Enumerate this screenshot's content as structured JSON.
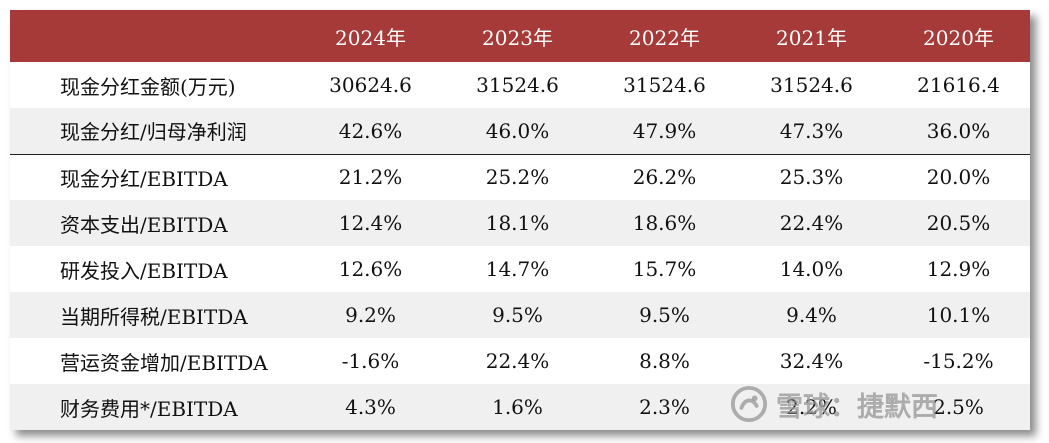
{
  "table": {
    "headers": [
      "",
      "2024年",
      "2023年",
      "2022年",
      "2021年",
      "2020年"
    ],
    "rows": [
      {
        "label": "现金分红金额(万元)",
        "values": [
          "30624.6",
          "31524.6",
          "31524.6",
          "31524.6",
          "21616.4"
        ]
      },
      {
        "label": "现金分红/归母净利润",
        "values": [
          "42.6%",
          "46.0%",
          "47.9%",
          "47.3%",
          "36.0%"
        ]
      },
      {
        "label": "现金分红/EBITDA",
        "values": [
          "21.2%",
          "25.2%",
          "26.2%",
          "25.3%",
          "20.0%"
        ]
      },
      {
        "label": "资本支出/EBITDA",
        "values": [
          "12.4%",
          "18.1%",
          "18.6%",
          "22.4%",
          "20.5%"
        ]
      },
      {
        "label": "研发投入/EBITDA",
        "values": [
          "12.6%",
          "14.7%",
          "15.7%",
          "14.0%",
          "12.9%"
        ]
      },
      {
        "label": "当期所得税/EBITDA",
        "values": [
          "9.2%",
          "9.5%",
          "9.5%",
          "9.4%",
          "10.1%"
        ]
      },
      {
        "label": "营运资金增加/EBITDA",
        "values": [
          "-1.6%",
          "22.4%",
          "8.8%",
          "32.4%",
          "-15.2%"
        ]
      },
      {
        "label": "财务费用*/EBITDA",
        "values": [
          "4.3%",
          "1.6%",
          "2.3%",
          "2.2%",
          "2.5%"
        ]
      }
    ]
  },
  "watermark": {
    "text": "雪球：捷默西"
  },
  "colors": {
    "header_bg": "#a53a38",
    "header_text": "#ffffff",
    "stripe_bg": "#f0f0f0",
    "separator": "#222222"
  }
}
